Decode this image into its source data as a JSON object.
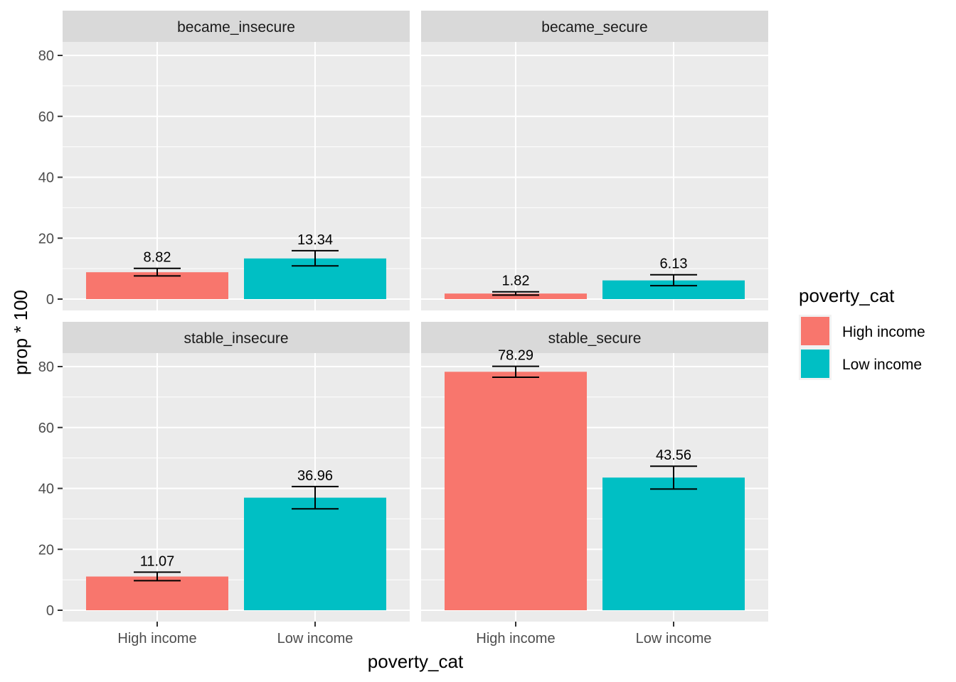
{
  "chart_data": {
    "type": "bar",
    "facets": [
      "became_insecure",
      "became_secure",
      "stable_insecure",
      "stable_secure"
    ],
    "categories": [
      "High income",
      "Low income"
    ],
    "xlabel": "poverty_cat",
    "ylabel": "prop * 100",
    "ylim": [
      0,
      90
    ],
    "yticks": [
      0,
      20,
      40,
      60,
      80
    ],
    "grid": true,
    "legend": {
      "title": "poverty_cat",
      "placement": "right",
      "items": [
        {
          "label": "High income",
          "color": "#F8766D"
        },
        {
          "label": "Low income",
          "color": "#00BFC4"
        }
      ]
    },
    "panels": [
      {
        "facet": "became_insecure",
        "bars": [
          {
            "category": "High income",
            "value": 8.82,
            "label": "8.82",
            "err_low": 7.6,
            "err_high": 10.1
          },
          {
            "category": "Low income",
            "value": 13.34,
            "label": "13.34",
            "err_low": 10.9,
            "err_high": 15.9
          }
        ]
      },
      {
        "facet": "became_secure",
        "bars": [
          {
            "category": "High income",
            "value": 1.82,
            "label": "1.82",
            "err_low": 1.3,
            "err_high": 2.4
          },
          {
            "category": "Low income",
            "value": 6.13,
            "label": "6.13",
            "err_low": 4.4,
            "err_high": 8.0
          }
        ]
      },
      {
        "facet": "stable_insecure",
        "bars": [
          {
            "category": "High income",
            "value": 11.07,
            "label": "11.07",
            "err_low": 9.7,
            "err_high": 12.5
          },
          {
            "category": "Low income",
            "value": 36.96,
            "label": "36.96",
            "err_low": 33.3,
            "err_high": 40.6
          }
        ]
      },
      {
        "facet": "stable_secure",
        "bars": [
          {
            "category": "High income",
            "value": 78.29,
            "label": "78.29",
            "err_low": 76.5,
            "err_high": 80.1
          },
          {
            "category": "Low income",
            "value": 43.56,
            "label": "43.56",
            "err_low": 39.8,
            "err_high": 47.3
          }
        ]
      }
    ]
  }
}
